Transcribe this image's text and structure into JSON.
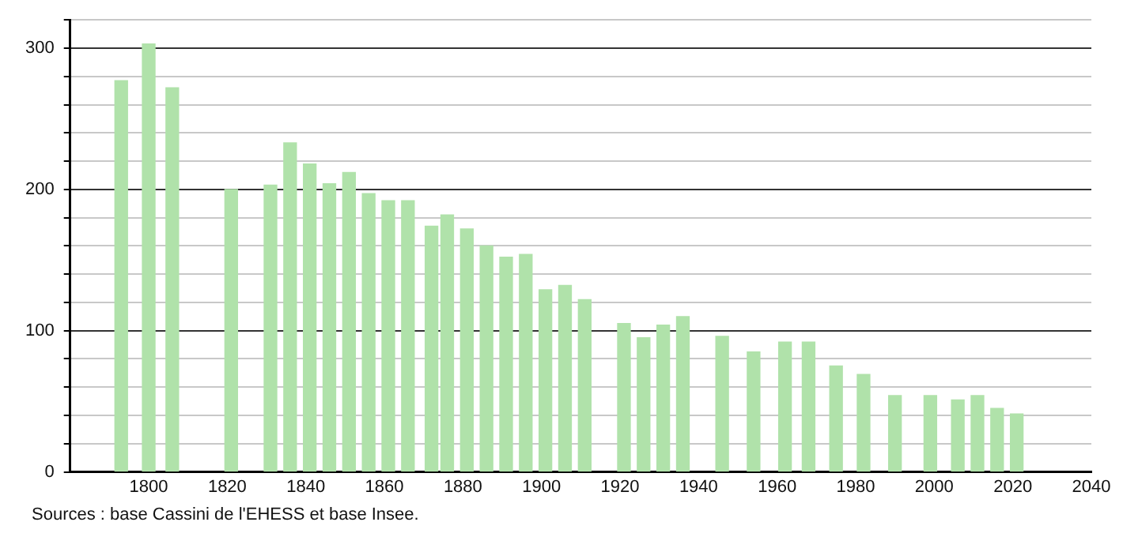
{
  "chart_data": {
    "type": "bar",
    "color": "#b0e2aa",
    "x": [
      1793,
      1800,
      1806,
      1821,
      1831,
      1836,
      1841,
      1846,
      1851,
      1856,
      1861,
      1866,
      1872,
      1876,
      1881,
      1886,
      1891,
      1896,
      1901,
      1906,
      1911,
      1921,
      1926,
      1931,
      1936,
      1946,
      1954,
      1962,
      1968,
      1975,
      1982,
      1990,
      1999,
      2006,
      2011,
      2016,
      2021
    ],
    "values": [
      277,
      303,
      272,
      200,
      203,
      233,
      218,
      204,
      212,
      197,
      192,
      192,
      174,
      182,
      172,
      160,
      152,
      154,
      129,
      132,
      122,
      105,
      95,
      104,
      110,
      96,
      85,
      92,
      92,
      75,
      69,
      54,
      54,
      51,
      54,
      45,
      41
    ],
    "xlim": [
      1780,
      2040
    ],
    "xticks": [
      1800,
      1820,
      1840,
      1860,
      1880,
      1900,
      1920,
      1940,
      1960,
      1980,
      2000,
      2020,
      2040
    ],
    "ylim": [
      0,
      320
    ],
    "yticks": [
      0,
      {
        "value": 20,
        "label": null
      },
      {
        "value": 40,
        "label": null
      },
      {
        "value": 60,
        "label": null
      },
      {
        "value": 80,
        "label": null
      },
      100,
      {
        "value": 120,
        "label": null
      },
      {
        "value": 140,
        "label": null
      },
      {
        "value": 160,
        "label": null
      },
      {
        "value": 180,
        "label": null
      },
      200,
      {
        "value": 220,
        "label": null
      },
      {
        "value": 240,
        "label": null
      },
      {
        "value": 260,
        "label": null
      },
      {
        "value": 280,
        "label": null
      },
      300,
      {
        "value": 320,
        "label": null
      }
    ],
    "grid": "y",
    "annotations": [
      "Sources : base Cassini de l'EHESS et base Insee."
    ]
  }
}
